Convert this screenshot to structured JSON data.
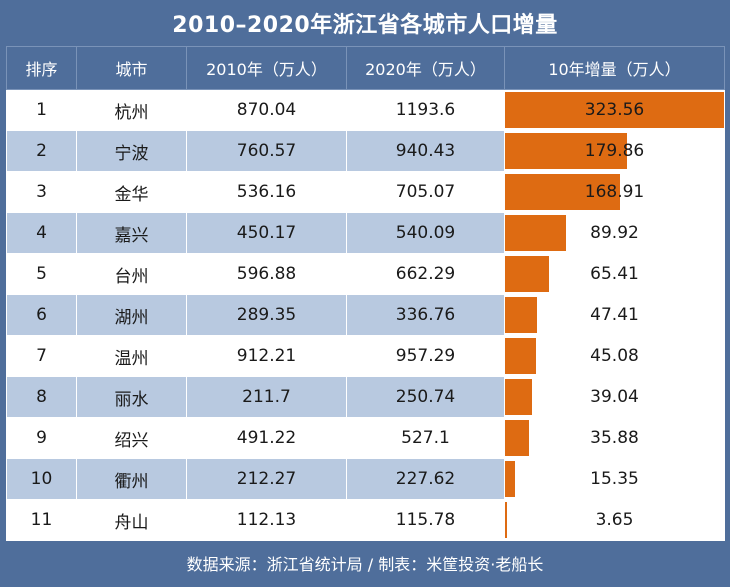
{
  "chart_data": {
    "type": "table",
    "title": "2010–2020年浙江省各城市人口增量",
    "columns": [
      "排序",
      "城市",
      "2010年（万人）",
      "2020年（万人）",
      "10年增量（万人）"
    ],
    "rows": [
      {
        "rank": "1",
        "city": "杭州",
        "y2010": "870.04",
        "y2020": "1193.6",
        "increase": 323.56,
        "increase_label": "323.56"
      },
      {
        "rank": "2",
        "city": "宁波",
        "y2010": "760.57",
        "y2020": "940.43",
        "increase": 179.86,
        "increase_label": "179.86"
      },
      {
        "rank": "3",
        "city": "金华",
        "y2010": "536.16",
        "y2020": "705.07",
        "increase": 168.91,
        "increase_label": "168.91"
      },
      {
        "rank": "4",
        "city": "嘉兴",
        "y2010": "450.17",
        "y2020": "540.09",
        "increase": 89.92,
        "increase_label": "89.92"
      },
      {
        "rank": "5",
        "city": "台州",
        "y2010": "596.88",
        "y2020": "662.29",
        "increase": 65.41,
        "increase_label": "65.41"
      },
      {
        "rank": "6",
        "city": "湖州",
        "y2010": "289.35",
        "y2020": "336.76",
        "increase": 47.41,
        "increase_label": "47.41"
      },
      {
        "rank": "7",
        "city": "温州",
        "y2010": "912.21",
        "y2020": "957.29",
        "increase": 45.08,
        "increase_label": "45.08"
      },
      {
        "rank": "8",
        "city": "丽水",
        "y2010": "211.7",
        "y2020": "250.74",
        "increase": 39.04,
        "increase_label": "39.04"
      },
      {
        "rank": "9",
        "city": "绍兴",
        "y2010": "491.22",
        "y2020": "527.1",
        "increase": 35.88,
        "increase_label": "35.88"
      },
      {
        "rank": "10",
        "city": "衢州",
        "y2010": "212.27",
        "y2020": "227.62",
        "increase": 15.35,
        "increase_label": "15.35"
      },
      {
        "rank": "11",
        "city": "舟山",
        "y2010": "112.13",
        "y2020": "115.78",
        "increase": 3.65,
        "increase_label": "3.65"
      }
    ],
    "bar_max": 323.56,
    "footer": "数据来源：浙江省统计局 / 制表：米筐投资·老船长"
  },
  "colors": {
    "frame": "#4f6e9b",
    "bar": "#de6b12",
    "row_alt": "#b8c9e0"
  }
}
